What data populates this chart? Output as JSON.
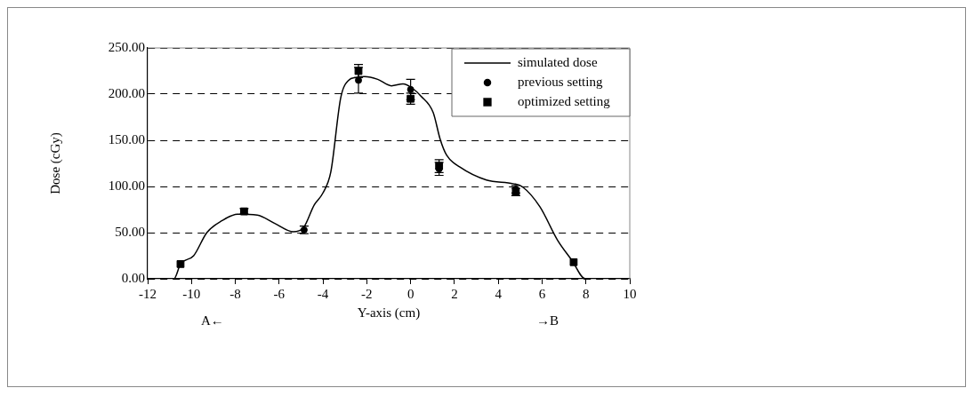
{
  "chart_data": {
    "type": "line",
    "xlabel": "Y-axis (cm)",
    "ylabel": "Dose (cGy)",
    "annotations": [
      "A←",
      "→B"
    ],
    "xlim": [
      -12,
      10
    ],
    "xticks": [
      -12,
      -10,
      -8,
      -6,
      -4,
      -2,
      0,
      2,
      4,
      6,
      8,
      10
    ],
    "ylim": [
      0,
      250
    ],
    "yticks": [
      {
        "value": 0,
        "label": "0.00"
      },
      {
        "value": 50,
        "label": "50.00"
      },
      {
        "value": 100,
        "label": "100.00"
      },
      {
        "value": 150,
        "label": "150.00"
      },
      {
        "value": 200,
        "label": "200.00"
      },
      {
        "value": 250,
        "label": "250.00"
      }
    ],
    "grid": "y",
    "legend": "top right",
    "series": [
      {
        "name": "simulated dose",
        "color": "#000000",
        "marker": "none",
        "line_style": "solid",
        "x": [
          -11.8,
          -10.8,
          -10.5,
          -9.9,
          -9.3,
          -8.6,
          -7.9,
          -7.0,
          -6.2,
          -5.35,
          -4.9,
          -4.4,
          -4.0,
          -3.64,
          -3.19,
          -2.83,
          -2.5,
          -2.1,
          -1.5,
          -0.88,
          -0.35,
          0.1,
          0.46,
          1.03,
          1.35,
          1.64,
          2.25,
          3.46,
          4.68,
          5.08,
          5.9,
          6.7,
          7.36,
          7.97,
          9.1
        ],
        "values": [
          0,
          0,
          16,
          25,
          50,
          63,
          70,
          69,
          60,
          51,
          55,
          80,
          93,
          116,
          196,
          215,
          218,
          219,
          216,
          209,
          211,
          206,
          198,
          180,
          151,
          134,
          121,
          107,
          103,
          100,
          78,
          42,
          20,
          0,
          0
        ]
      },
      {
        "name": "previous setting",
        "type": "scatter",
        "color": "#000000",
        "marker": "circle",
        "x": [
          -4.86,
          -2.38,
          0,
          1.3,
          4.8
        ],
        "values": [
          53,
          215,
          205,
          119,
          97
        ],
        "errors": [
          4,
          14,
          11,
          7,
          4
        ]
      },
      {
        "name": "optimized setting",
        "type": "scatter",
        "color": "#000000",
        "marker": "square",
        "x": [
          -10.5,
          -7.6,
          -2.38,
          0,
          1.3,
          4.8,
          7.44
        ],
        "values": [
          16,
          73,
          225,
          195,
          122,
          94,
          18
        ],
        "errors": [
          null,
          3,
          7,
          6,
          7,
          4,
          null
        ]
      }
    ]
  }
}
